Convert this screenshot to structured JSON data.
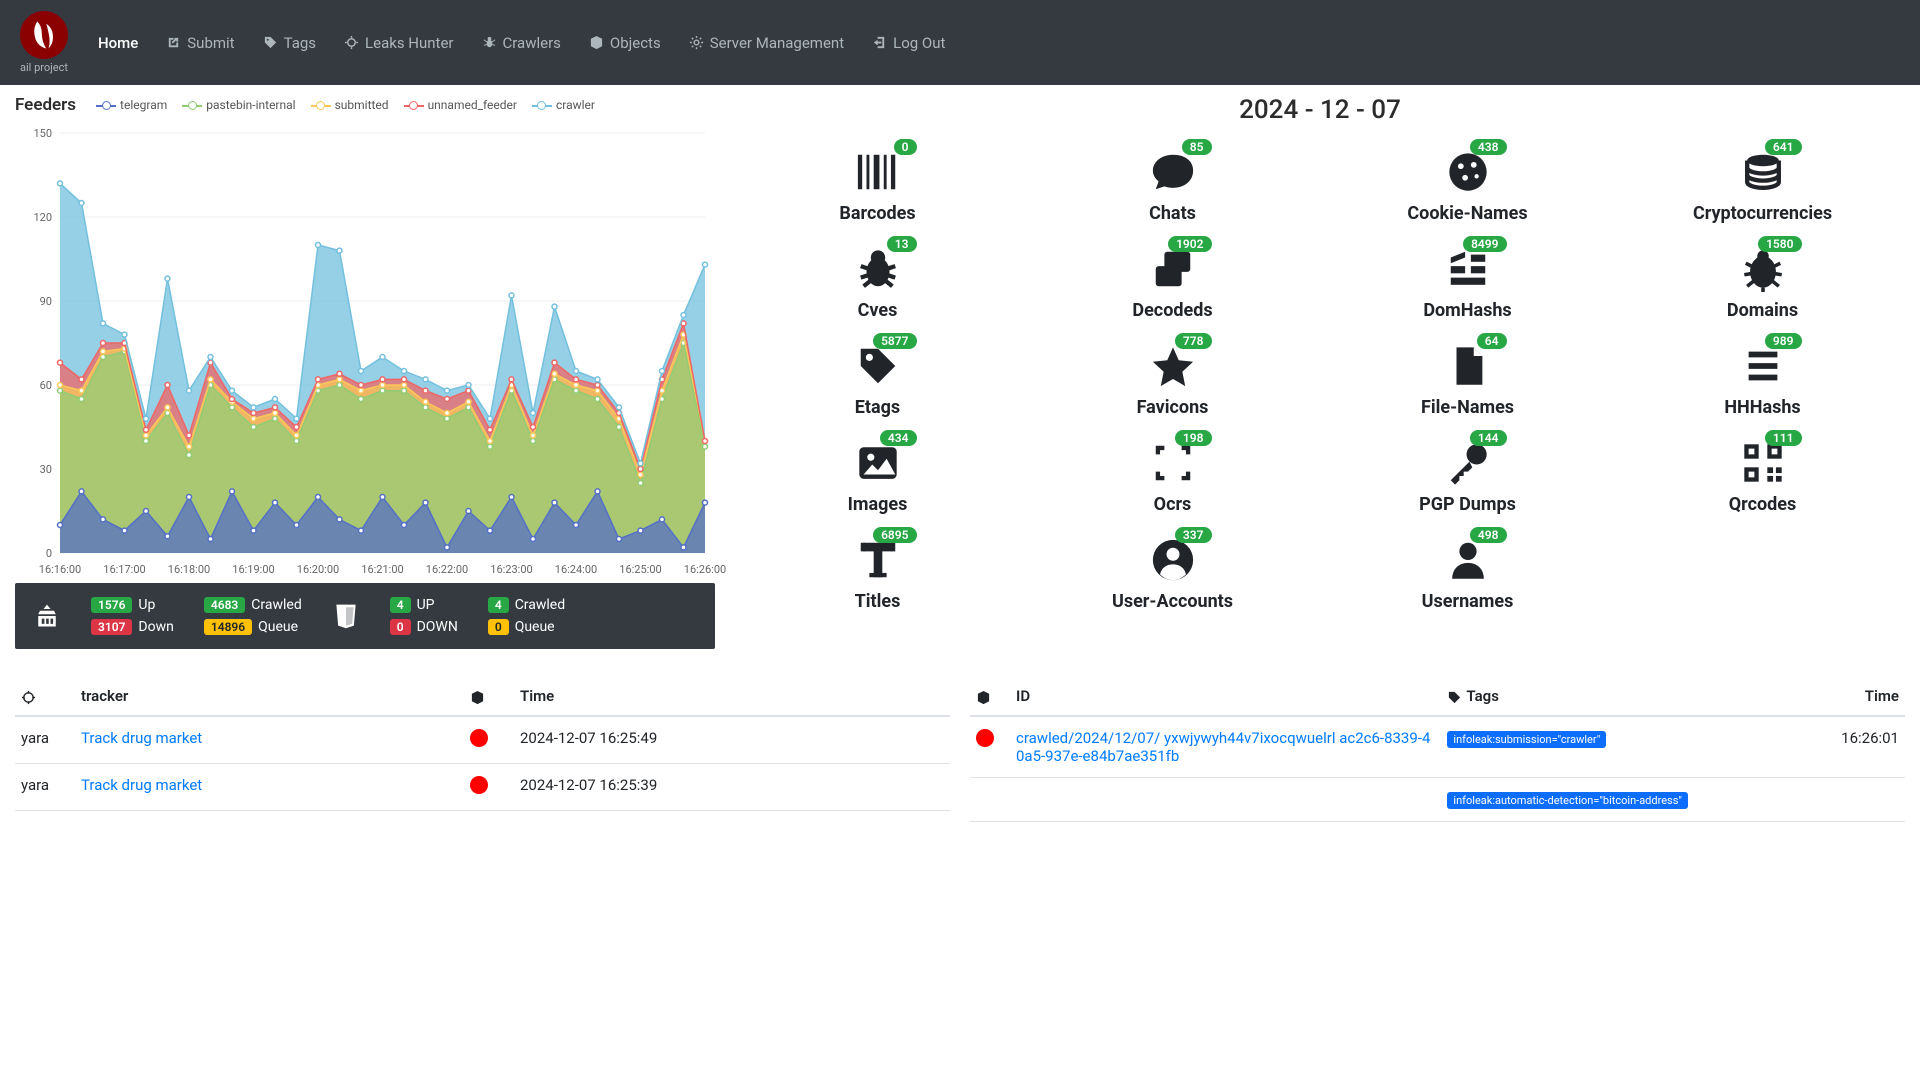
{
  "nav": {
    "logo_text": "ail project",
    "items": [
      {
        "label": "Home",
        "icon": "",
        "active": true
      },
      {
        "label": "Submit",
        "icon": "external"
      },
      {
        "label": "Tags",
        "icon": "tag"
      },
      {
        "label": "Leaks Hunter",
        "icon": "crosshair"
      },
      {
        "label": "Crawlers",
        "icon": "spider"
      },
      {
        "label": "Objects",
        "icon": "cube"
      },
      {
        "label": "Server Management",
        "icon": "gear"
      },
      {
        "label": "Log Out",
        "icon": "logout"
      }
    ]
  },
  "chart": {
    "title": "Feeders",
    "series": [
      {
        "name": "telegram",
        "color": "#5470c6"
      },
      {
        "name": "pastebin-internal",
        "color": "#91cc75"
      },
      {
        "name": "submitted",
        "color": "#fac858"
      },
      {
        "name": "unnamed_feeder",
        "color": "#ee6666"
      },
      {
        "name": "crawler",
        "color": "#73c0de"
      }
    ],
    "y_axis": {
      "min": 0,
      "max": 150,
      "step": 30
    },
    "x_labels": [
      "16:16:00",
      "16:17:00",
      "16:18:00",
      "16:19:00",
      "16:20:00",
      "16:21:00",
      "16:22:00",
      "16:23:00",
      "16:24:00",
      "16:25:00",
      "16:26:00"
    ],
    "data": {
      "telegram": [
        10,
        22,
        12,
        8,
        15,
        6,
        20,
        5,
        22,
        8,
        18,
        10,
        20,
        12,
        8,
        20,
        10,
        18,
        2,
        15,
        8,
        20,
        5,
        18,
        10,
        22,
        5,
        8,
        12,
        2,
        18
      ],
      "pastebin_internal": [
        58,
        55,
        70,
        72,
        40,
        50,
        35,
        60,
        52,
        45,
        48,
        40,
        58,
        60,
        55,
        58,
        58,
        52,
        48,
        52,
        38,
        58,
        40,
        62,
        58,
        55,
        45,
        25,
        55,
        75,
        38
      ],
      "submitted": [
        60,
        58,
        72,
        73,
        42,
        52,
        38,
        62,
        54,
        48,
        50,
        42,
        60,
        62,
        58,
        60,
        60,
        54,
        50,
        54,
        40,
        60,
        42,
        64,
        60,
        58,
        48,
        28,
        58,
        78,
        40
      ],
      "unnamed_feeder": [
        68,
        62,
        75,
        75,
        44,
        60,
        42,
        68,
        55,
        50,
        52,
        45,
        62,
        64,
        60,
        62,
        62,
        58,
        55,
        58,
        44,
        62,
        45,
        68,
        62,
        60,
        50,
        30,
        62,
        82,
        40
      ],
      "crawler": [
        132,
        125,
        82,
        78,
        48,
        98,
        58,
        70,
        58,
        52,
        55,
        48,
        110,
        108,
        65,
        70,
        65,
        62,
        58,
        60,
        48,
        92,
        50,
        88,
        65,
        62,
        52,
        32,
        65,
        85,
        103
      ]
    }
  },
  "stats_bar": {
    "onion": {
      "up": {
        "value": "1576",
        "label": "Up"
      },
      "down": {
        "value": "3107",
        "label": "Down"
      }
    },
    "onion2": {
      "crawled": {
        "value": "4683",
        "label": "Crawled"
      },
      "queue": {
        "value": "14896",
        "label": "Queue"
      }
    },
    "html": {
      "up": {
        "value": "4",
        "label": "UP"
      },
      "down": {
        "value": "0",
        "label": "DOWN"
      }
    },
    "html2": {
      "crawled": {
        "value": "4",
        "label": "Crawled"
      },
      "queue": {
        "value": "0",
        "label": "Queue"
      }
    }
  },
  "date": "2024 - 12 - 07",
  "tiles": [
    {
      "label": "Barcodes",
      "count": "0",
      "icon": "barcode"
    },
    {
      "label": "Chats",
      "count": "85",
      "icon": "chat"
    },
    {
      "label": "Cookie-Names",
      "count": "438",
      "icon": "cookie"
    },
    {
      "label": "Cryptocurrencies",
      "count": "641",
      "icon": "coins"
    },
    {
      "label": "Cves",
      "count": "13",
      "icon": "bug"
    },
    {
      "label": "Decodeds",
      "count": "1902",
      "icon": "decode"
    },
    {
      "label": "DomHashs",
      "count": "8499",
      "icon": "domhash"
    },
    {
      "label": "Domains",
      "count": "1580",
      "icon": "domain"
    },
    {
      "label": "Etags",
      "count": "5877",
      "icon": "etag"
    },
    {
      "label": "Favicons",
      "count": "778",
      "icon": "favicon"
    },
    {
      "label": "File-Names",
      "count": "64",
      "icon": "file"
    },
    {
      "label": "HHHashs",
      "count": "989",
      "icon": "hhhash"
    },
    {
      "label": "Images",
      "count": "434",
      "icon": "image"
    },
    {
      "label": "Ocrs",
      "count": "198",
      "icon": "ocr"
    },
    {
      "label": "PGP Dumps",
      "count": "144",
      "icon": "pgp"
    },
    {
      "label": "Qrcodes",
      "count": "111",
      "icon": "qrcode"
    },
    {
      "label": "Titles",
      "count": "6895",
      "icon": "title"
    },
    {
      "label": "User-Accounts",
      "count": "337",
      "icon": "useracct"
    },
    {
      "label": "Usernames",
      "count": "498",
      "icon": "user"
    }
  ],
  "tracker_table": {
    "headers": {
      "type": "",
      "tracker": "tracker",
      "dot": "",
      "time": "Time"
    },
    "rows": [
      {
        "type": "yara",
        "tracker": "Track drug market",
        "time": "2024-12-07 16:25:49"
      },
      {
        "type": "yara",
        "tracker": "Track drug market",
        "time": "2024-12-07 16:25:39"
      }
    ]
  },
  "crawl_table": {
    "headers": {
      "dot": "",
      "id": "ID",
      "tags": "Tags",
      "time": "Time"
    },
    "rows": [
      {
        "id": "crawled/2024/12/07/                              yxwjywyh44v7ixocqwuelrl                        ac2c6-8339-40a5-937e-e84b7ae351fb",
        "tag": "infoleak:submission=\"crawler\"",
        "time": "16:26:01"
      },
      {
        "id": "",
        "tag": "infoleak:automatic-detection=\"bitcoin-address\"",
        "time": ""
      }
    ]
  }
}
